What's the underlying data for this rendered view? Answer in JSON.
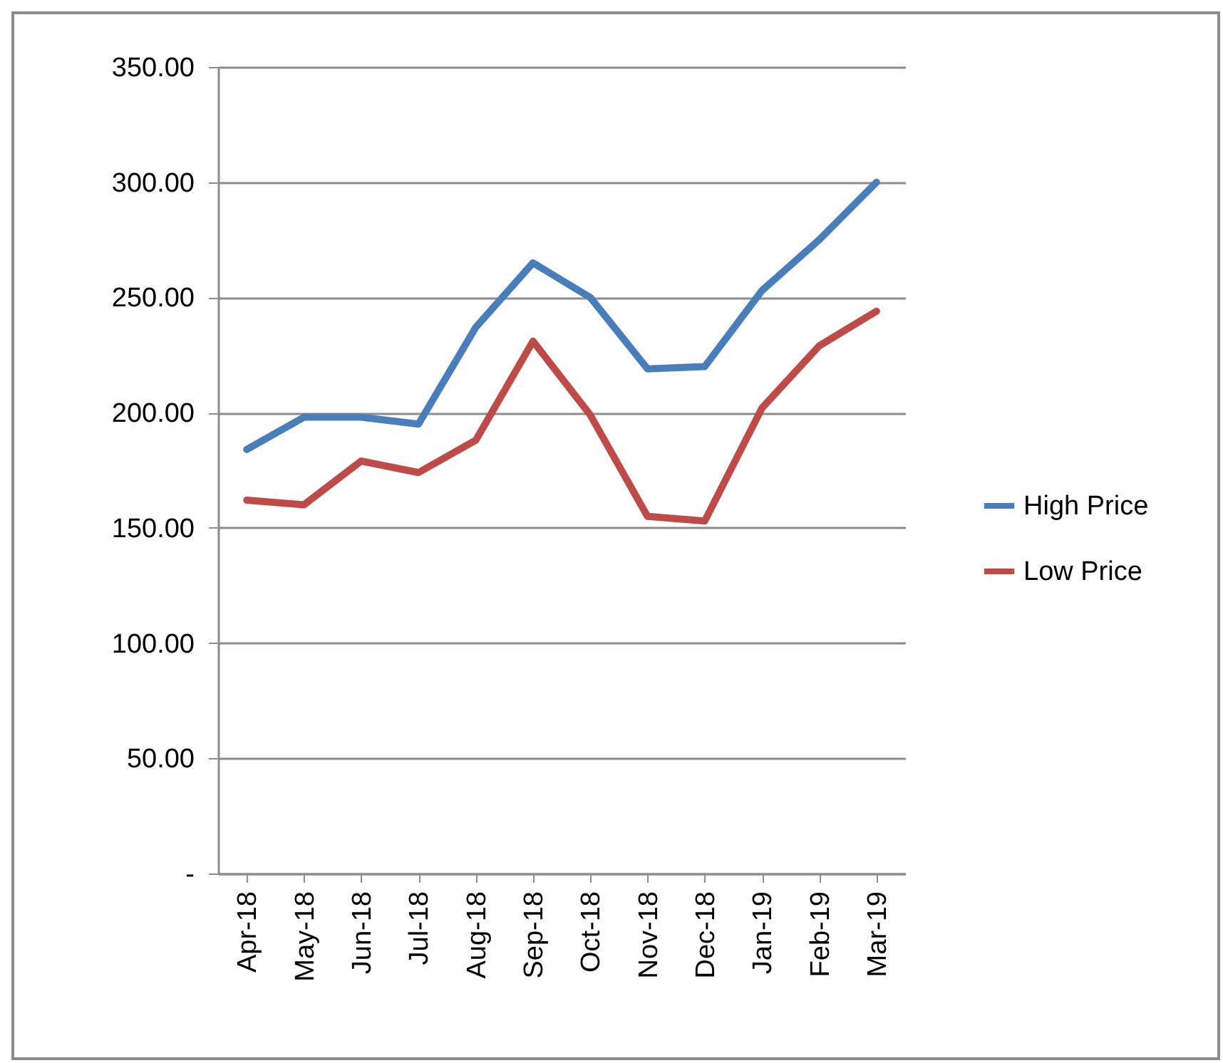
{
  "chart_data": {
    "type": "line",
    "categories": [
      "Apr-18",
      "May-18",
      "Jun-18",
      "Jul-18",
      "Aug-18",
      "Sep-18",
      "Oct-18",
      "Nov-18",
      "Dec-18",
      "Jan-19",
      "Feb-19",
      "Mar-19"
    ],
    "series": [
      {
        "name": "High Price",
        "color": "#4a7ebb",
        "values": [
          184,
          198,
          198,
          195,
          237,
          265,
          250,
          219,
          220,
          253,
          275,
          300
        ]
      },
      {
        "name": "Low Price",
        "color": "#be4b48",
        "values": [
          162,
          160,
          179,
          174,
          188,
          231,
          199,
          155,
          153,
          202,
          229,
          244
        ]
      }
    ],
    "ylim": [
      0,
      350
    ],
    "yticks": [
      {
        "value": 0,
        "label": "-"
      },
      {
        "value": 50,
        "label": "50.00"
      },
      {
        "value": 100,
        "label": "100.00"
      },
      {
        "value": 150,
        "label": "150.00"
      },
      {
        "value": 200,
        "label": "200.00"
      },
      {
        "value": 250,
        "label": "250.00"
      },
      {
        "value": 300,
        "label": "300.00"
      },
      {
        "value": 350,
        "label": "350.00"
      }
    ],
    "grid": "y",
    "legend": "right",
    "marker": "none",
    "line_style": "solid"
  }
}
